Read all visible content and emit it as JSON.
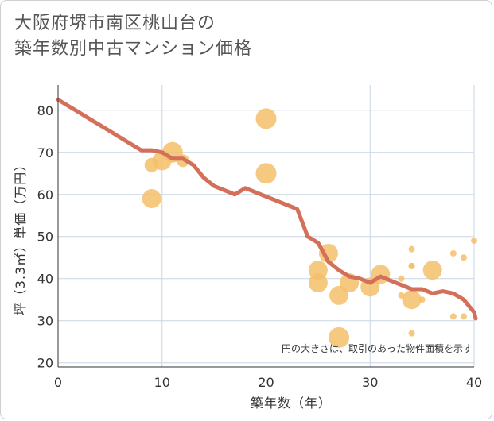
{
  "title_line1": "大阪府堺市南区桃山台の",
  "title_line2": "築年数別中古マンション価格",
  "chart_data": {
    "type": "scatter",
    "title": "大阪府堺市南区桃山台の築年数別中古マンション価格",
    "xlabel": "築年数（年）",
    "ylabel": "坪（3.3㎡）単価（万円）",
    "xlim": [
      0,
      40
    ],
    "ylim": [
      19,
      86
    ],
    "x_ticks": [
      0,
      10,
      20,
      30,
      40
    ],
    "y_ticks": [
      20,
      30,
      40,
      50,
      60,
      70,
      80
    ],
    "grid": true,
    "annotation": "円の大きさは、取引のあった物件面積を示す",
    "colors": {
      "bubble": "#f5c06a",
      "line": "#d4705a",
      "grid": "#c9d6e6"
    },
    "series": [
      {
        "type": "bubble",
        "points": [
          {
            "x": 9,
            "y": 67,
            "r": 9
          },
          {
            "x": 9,
            "y": 59,
            "r": 12
          },
          {
            "x": 10,
            "y": 68,
            "r": 12
          },
          {
            "x": 11,
            "y": 70,
            "r": 13
          },
          {
            "x": 12,
            "y": 68,
            "r": 8
          },
          {
            "x": 20,
            "y": 78,
            "r": 13
          },
          {
            "x": 20,
            "y": 65,
            "r": 13
          },
          {
            "x": 25,
            "y": 42,
            "r": 12
          },
          {
            "x": 25,
            "y": 39,
            "r": 12
          },
          {
            "x": 26,
            "y": 46,
            "r": 12
          },
          {
            "x": 27,
            "y": 36,
            "r": 12
          },
          {
            "x": 27,
            "y": 26,
            "r": 13
          },
          {
            "x": 28,
            "y": 39,
            "r": 12
          },
          {
            "x": 30,
            "y": 38,
            "r": 12
          },
          {
            "x": 31,
            "y": 41,
            "r": 12
          },
          {
            "x": 33,
            "y": 40,
            "r": 4
          },
          {
            "x": 33,
            "y": 36,
            "r": 4
          },
          {
            "x": 34,
            "y": 47,
            "r": 4
          },
          {
            "x": 34,
            "y": 43,
            "r": 4
          },
          {
            "x": 34,
            "y": 43,
            "r": 4
          },
          {
            "x": 34,
            "y": 35,
            "r": 12
          },
          {
            "x": 34,
            "y": 27,
            "r": 4
          },
          {
            "x": 35,
            "y": 35,
            "r": 4
          },
          {
            "x": 36,
            "y": 42,
            "r": 12
          },
          {
            "x": 38,
            "y": 46,
            "r": 4
          },
          {
            "x": 38,
            "y": 31,
            "r": 4
          },
          {
            "x": 39,
            "y": 45,
            "r": 4
          },
          {
            "x": 39,
            "y": 31,
            "r": 4
          },
          {
            "x": 40,
            "y": 49,
            "r": 4
          }
        ]
      },
      {
        "type": "line",
        "points": [
          [
            0,
            82.5
          ],
          [
            1,
            81
          ],
          [
            2,
            79.5
          ],
          [
            3,
            78
          ],
          [
            4,
            76.5
          ],
          [
            5,
            75
          ],
          [
            6,
            73.5
          ],
          [
            7,
            72
          ],
          [
            8,
            70.5
          ],
          [
            9,
            70.5
          ],
          [
            10,
            70
          ],
          [
            11,
            68.5
          ],
          [
            12,
            68.5
          ],
          [
            13,
            67
          ],
          [
            14,
            64
          ],
          [
            15,
            62
          ],
          [
            16,
            61
          ],
          [
            17,
            60
          ],
          [
            18,
            61.5
          ],
          [
            19,
            60.5
          ],
          [
            20,
            59.5
          ],
          [
            21,
            58.5
          ],
          [
            22,
            57.5
          ],
          [
            23,
            56.5
          ],
          [
            24,
            50
          ],
          [
            25,
            48.5
          ],
          [
            26,
            44
          ],
          [
            27,
            42
          ],
          [
            28,
            40.5
          ],
          [
            29,
            40
          ],
          [
            30,
            39
          ],
          [
            31,
            40.5
          ],
          [
            32,
            39.5
          ],
          [
            33,
            38.5
          ],
          [
            34,
            37.5
          ],
          [
            35,
            37.5
          ],
          [
            36,
            36.5
          ],
          [
            37,
            37
          ],
          [
            38,
            36.5
          ],
          [
            39,
            35
          ],
          [
            40,
            32
          ],
          [
            41,
            30.5
          ]
        ]
      }
    ]
  }
}
